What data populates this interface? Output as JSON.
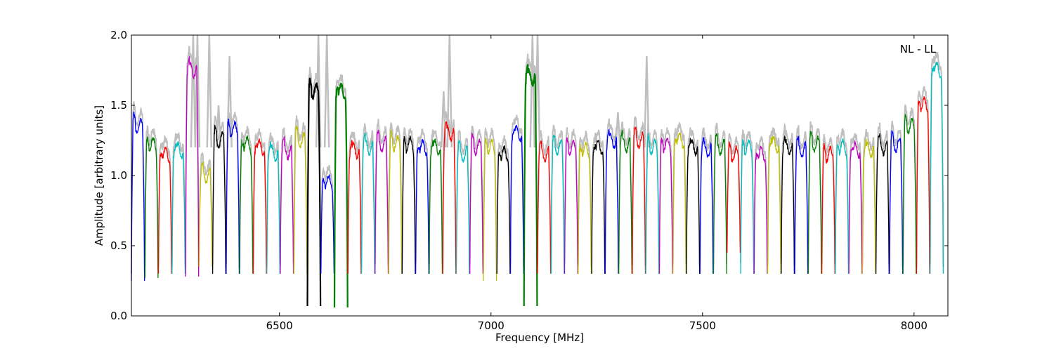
{
  "chart_data": {
    "type": "line",
    "title": "",
    "xlabel": "Frequency [MHz]",
    "ylabel": "Amplitude [arbitrary units]",
    "xlim": [
      6150,
      8080
    ],
    "ylim": [
      0.0,
      2.0
    ],
    "x_ticks": [
      6500,
      7000,
      7500,
      8000
    ],
    "y_ticks": [
      0.0,
      0.5,
      1.0,
      1.5,
      2.0
    ],
    "y_tick_labels": [
      "0.0",
      "0.5",
      "1.0",
      "1.5",
      "2.0"
    ],
    "grid": false,
    "annotation": "NL - LL",
    "background_trace_color": "#bfbfbf",
    "color_cycle": [
      "#0000ff",
      "#008000",
      "#ff0000",
      "#00bfbf",
      "#bf00bf",
      "#bfbf00",
      "#000000"
    ],
    "channel_width_mhz": 32,
    "channel_starts_mhz": [
      6150,
      6182,
      6214,
      6246,
      6278,
      6310,
      6342,
      6374,
      6406,
      6438,
      6470,
      6502,
      6534,
      6566,
      6598,
      6630,
      6662,
      6694,
      6726,
      6758,
      6790,
      6822,
      6854,
      6886,
      6918,
      6950,
      6982,
      7014,
      7046,
      7078,
      7110,
      7142,
      7174,
      7206,
      7238,
      7270,
      7302,
      7334,
      7366,
      7398,
      7430,
      7462,
      7494,
      7526,
      7558,
      7590,
      7622,
      7654,
      7686,
      7718,
      7750,
      7782,
      7814,
      7846,
      7878,
      7910,
      7942,
      7974,
      8006,
      8038
    ],
    "channel_plateau_levels": [
      1.35,
      1.22,
      1.15,
      1.18,
      1.75,
      1.0,
      1.25,
      1.33,
      1.22,
      1.2,
      1.16,
      1.17,
      1.25,
      1.6,
      0.95,
      1.6,
      1.18,
      1.2,
      1.22,
      1.23,
      1.22,
      1.2,
      1.2,
      1.3,
      1.15,
      1.2,
      1.2,
      1.15,
      1.3,
      1.7,
      1.15,
      1.2,
      1.2,
      1.18,
      1.2,
      1.25,
      1.22,
      1.25,
      1.2,
      1.22,
      1.25,
      1.2,
      1.18,
      1.2,
      1.15,
      1.2,
      1.15,
      1.22,
      1.2,
      1.18,
      1.22,
      1.15,
      1.2,
      1.18,
      1.18,
      1.2,
      1.22,
      1.35,
      1.5,
      1.75
    ],
    "channel_trough_levels": [
      0.25,
      0.27,
      0.3,
      0.3,
      0.28,
      0.35,
      0.3,
      0.3,
      0.3,
      0.3,
      0.3,
      0.3,
      0.3,
      0.07,
      0.3,
      0.06,
      0.3,
      0.3,
      0.3,
      0.3,
      0.3,
      0.3,
      0.3,
      0.3,
      0.3,
      0.3,
      0.25,
      0.3,
      0.3,
      0.07,
      0.3,
      0.3,
      0.3,
      0.3,
      0.3,
      0.3,
      0.3,
      0.3,
      0.3,
      0.3,
      0.3,
      0.3,
      0.3,
      0.3,
      0.45,
      0.3,
      0.3,
      0.3,
      0.3,
      0.3,
      0.3,
      0.3,
      0.3,
      0.3,
      0.3,
      0.3,
      0.3,
      0.3,
      0.3,
      0.3
    ],
    "gray_spikes": [
      {
        "x": 6296,
        "y": 2.0
      },
      {
        "x": 6306,
        "y": 2.0
      },
      {
        "x": 6334,
        "y": 2.0
      },
      {
        "x": 6356,
        "y": 1.5
      },
      {
        "x": 6382,
        "y": 1.85
      },
      {
        "x": 6592,
        "y": 2.0
      },
      {
        "x": 6612,
        "y": 2.0
      },
      {
        "x": 6888,
        "y": 1.6
      },
      {
        "x": 6902,
        "y": 2.0
      },
      {
        "x": 7098,
        "y": 2.0
      },
      {
        "x": 7110,
        "y": 2.0
      },
      {
        "x": 7300,
        "y": 1.45
      },
      {
        "x": 7368,
        "y": 1.85
      }
    ]
  }
}
